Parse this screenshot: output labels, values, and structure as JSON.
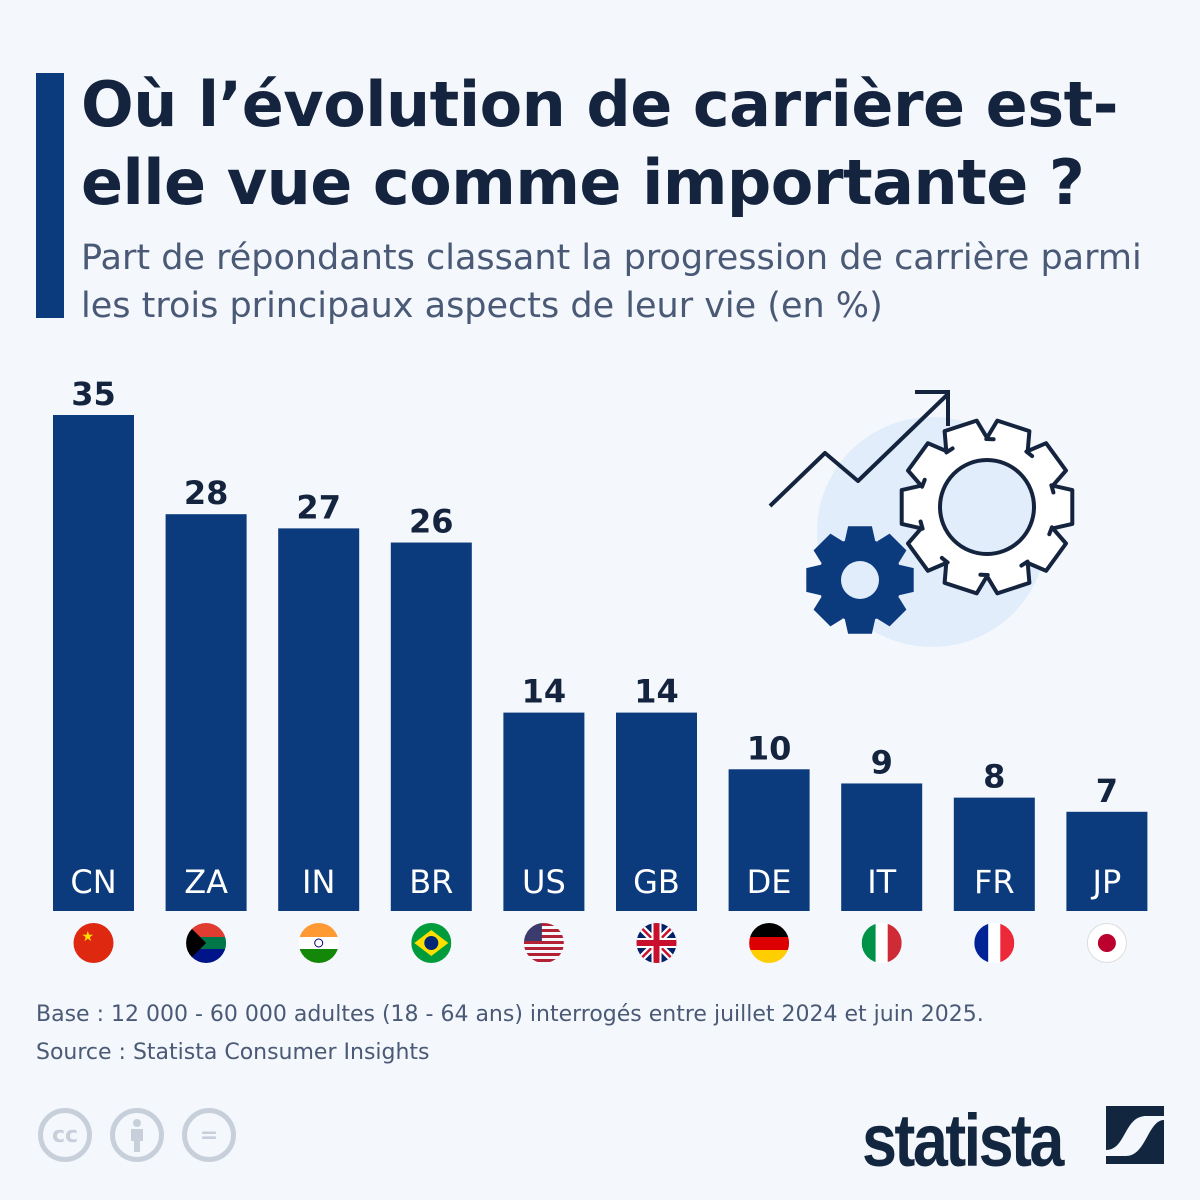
{
  "title": "Où l’évolution de carrière est-elle vue comme importante ?",
  "subtitle": "Part de répondants classant la progression de carrière parmi les trois principaux aspects de leur vie (en %)",
  "chart_data": {
    "type": "bar",
    "categories": [
      "CN",
      "ZA",
      "IN",
      "BR",
      "US",
      "GB",
      "DE",
      "IT",
      "FR",
      "JP"
    ],
    "values": [
      35,
      28,
      27,
      26,
      14,
      14,
      10,
      9,
      8,
      7
    ],
    "ylim": [
      0,
      35
    ],
    "grid": false,
    "bar_color": "#0b3a7d",
    "flags": [
      "china-flag",
      "south-africa-flag",
      "india-flag",
      "brazil-flag",
      "usa-flag",
      "uk-flag",
      "germany-flag",
      "italy-flag",
      "france-flag",
      "japan-flag"
    ]
  },
  "footer": {
    "base": "Base : 12 000 - 60 000 adultes (18 - 64 ans) interrogés entre juillet 2024 et juin 2025.",
    "source": "Source : Statista Consumer Insights"
  },
  "license_icons": [
    "cc-icon",
    "attribution-icon",
    "no-derivatives-icon"
  ],
  "license_text": {
    "cc": "cc",
    "nd": "="
  },
  "logo": "statista"
}
